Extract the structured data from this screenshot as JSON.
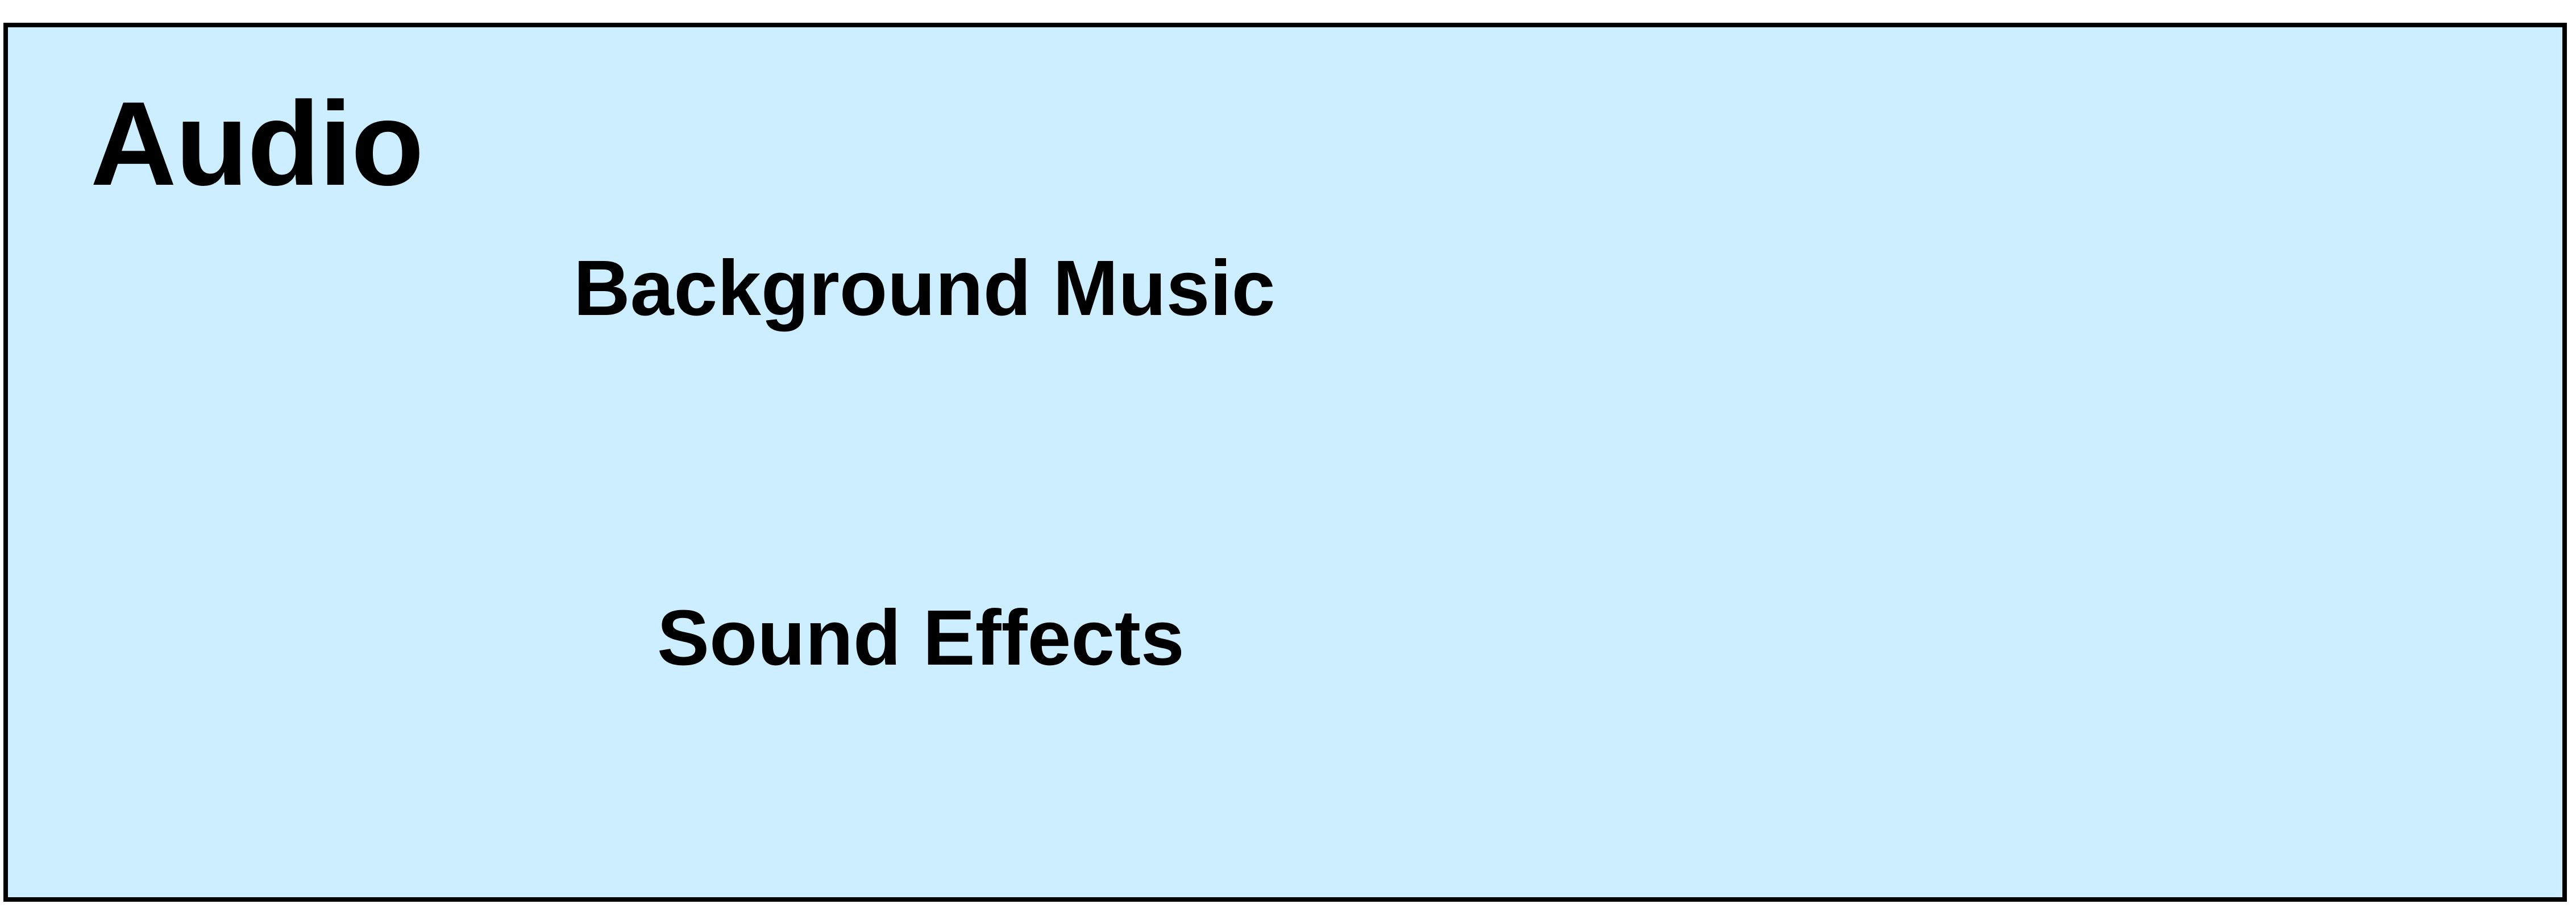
{
  "panel": {
    "title": "Audio",
    "background_color": "#cdeeff",
    "border_color": "#000000"
  },
  "options": [
    {
      "label": "Background Music"
    },
    {
      "label": "Sound Effects"
    }
  ]
}
